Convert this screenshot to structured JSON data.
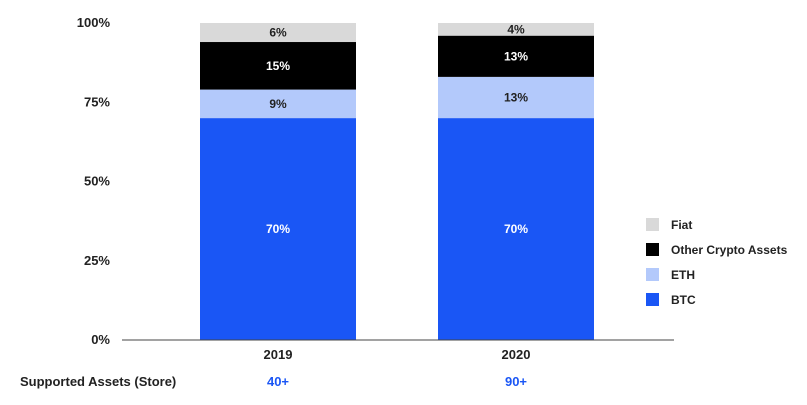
{
  "chart_data": {
    "type": "bar",
    "stacked": true,
    "categories": [
      "2019",
      "2020"
    ],
    "series": [
      {
        "name": "BTC",
        "values": [
          70,
          70
        ],
        "labels": [
          "70%",
          "70%"
        ],
        "color": "#1a56f5",
        "label_color": "#ffffff"
      },
      {
        "name": "ETH",
        "values": [
          9,
          13
        ],
        "labels": [
          "9%",
          "13%"
        ],
        "color": "#b3c9fb",
        "label_color": "#222222"
      },
      {
        "name": "Other Crypto Assets",
        "values": [
          15,
          13
        ],
        "labels": [
          "15%",
          "13%"
        ],
        "color": "#000000",
        "label_color": "#ffffff"
      },
      {
        "name": "Fiat",
        "values": [
          6,
          4
        ],
        "labels": [
          "6%",
          "4%"
        ],
        "color": "#d9d9d9",
        "label_color": "#222222"
      }
    ],
    "yticks": [
      "0%",
      "25%",
      "50%",
      "75%",
      "100%"
    ],
    "ylim": [
      0,
      100
    ],
    "grid": false,
    "legend_position": "right",
    "legend_order": [
      "Fiat",
      "Other Crypto Assets",
      "ETH",
      "BTC"
    ]
  },
  "footer": {
    "label": "Supported Assets (Store)",
    "values": [
      "40+",
      "90+"
    ],
    "value_color": "#1a56f5"
  }
}
